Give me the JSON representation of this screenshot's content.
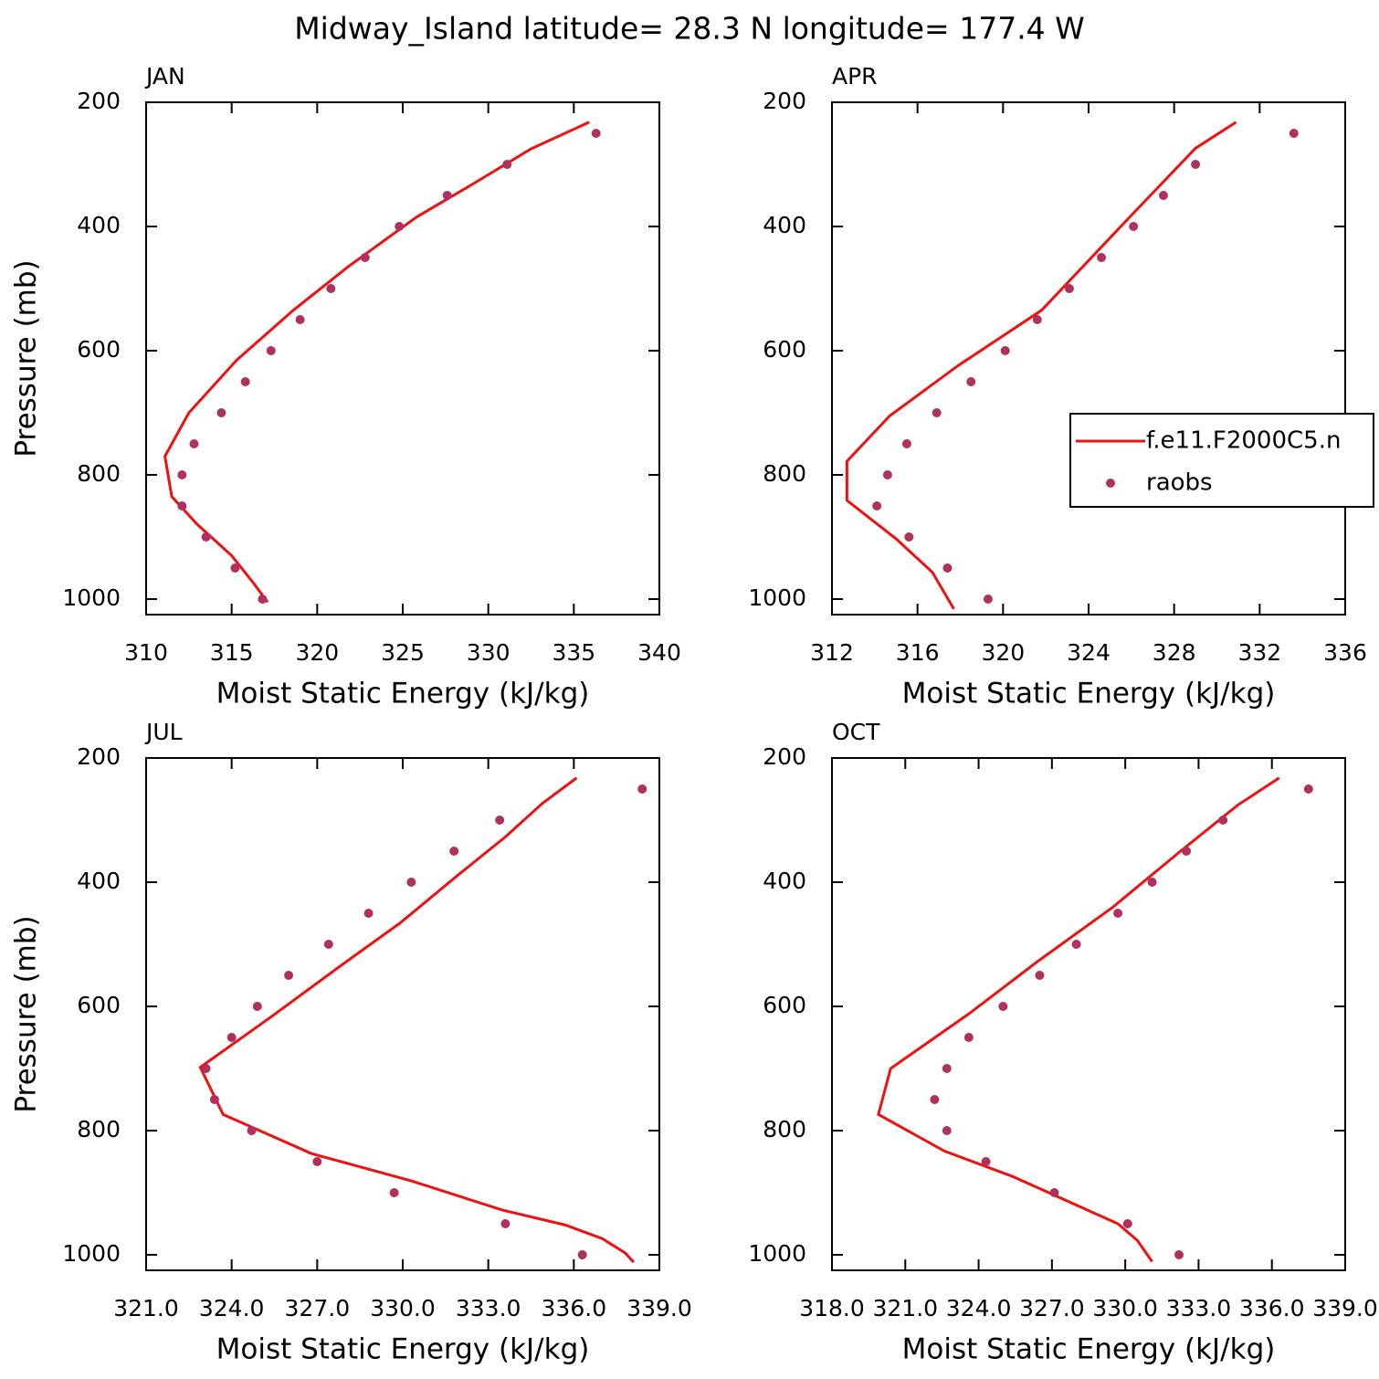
{
  "title": "Midway_Island  latitude= 28.3 N longitude= 177.4 W",
  "chart_data": [
    {
      "type": "line",
      "label": "JAN",
      "xlabel": "Moist Static Energy (kJ/kg)",
      "ylabel": "Pressure (mb)",
      "xlim": [
        310,
        340
      ],
      "xticks": [
        310,
        315,
        320,
        325,
        330,
        335,
        340
      ],
      "ylim": [
        200,
        1025
      ],
      "yticks": [
        200,
        400,
        600,
        800,
        1000
      ],
      "yinvert": true,
      "series": [
        {
          "mode": "line",
          "color": "#ee1111",
          "x": [
            335.9,
            332.5,
            329.2,
            325.8,
            321.8,
            318.6,
            315.3,
            312.5,
            311.1,
            311.5,
            313.0,
            315.0,
            316.3,
            317.1
          ],
          "y": [
            232,
            275,
            330,
            385,
            465,
            535,
            615,
            700,
            770,
            835,
            880,
            930,
            975,
            1005
          ]
        },
        {
          "mode": "markers",
          "color": "#b03060",
          "x": [
            336.3,
            331.1,
            327.6,
            324.8,
            322.8,
            320.8,
            319.0,
            317.3,
            315.8,
            314.4,
            312.8,
            312.1,
            312.1,
            313.5,
            315.2,
            316.8
          ],
          "y": [
            250,
            300,
            350,
            400,
            450,
            500,
            550,
            600,
            650,
            700,
            750,
            800,
            850,
            900,
            950,
            1000
          ]
        }
      ]
    },
    {
      "type": "line",
      "label": "APR",
      "xlabel": "Moist Static Energy (kJ/kg)",
      "xlim": [
        312,
        336
      ],
      "xticks": [
        312,
        316,
        320,
        324,
        328,
        332,
        336
      ],
      "ylim": [
        200,
        1025
      ],
      "yticks": [
        200,
        400,
        600,
        800,
        1000
      ],
      "yinvert": true,
      "legend": "right",
      "series": [
        {
          "name": "f.e11.F2000C5.n",
          "mode": "line",
          "color": "#ee1111",
          "x": [
            330.9,
            329.0,
            326.0,
            321.8,
            317.9,
            314.7,
            312.7,
            312.7,
            315.0,
            316.7,
            317.7
          ],
          "y": [
            232,
            274,
            382,
            535,
            624,
            705,
            778,
            841,
            903,
            957,
            1016
          ]
        },
        {
          "name": "raobs",
          "mode": "markers",
          "color": "#b03060",
          "x": [
            333.6,
            329.0,
            327.5,
            326.1,
            324.6,
            323.1,
            321.6,
            320.1,
            318.5,
            316.9,
            315.5,
            314.6,
            314.1,
            315.6,
            317.4,
            319.3
          ],
          "y": [
            250,
            300,
            350,
            400,
            450,
            500,
            550,
            600,
            650,
            700,
            750,
            800,
            850,
            900,
            950,
            1000
          ]
        }
      ]
    },
    {
      "type": "line",
      "label": "JUL",
      "xlabel": "Moist Static Energy (kJ/kg)",
      "ylabel": "Pressure (mb)",
      "xlim": [
        321,
        339
      ],
      "xticks": [
        {
          "value": 321,
          "label": "321.0"
        },
        {
          "value": 324,
          "label": "324.0"
        },
        {
          "value": 327,
          "label": "327.0"
        },
        {
          "value": 330,
          "label": "330.0"
        },
        {
          "value": 333,
          "label": "333.0"
        },
        {
          "value": 336,
          "label": "336.0"
        },
        {
          "value": 339,
          "label": "339.0"
        }
      ],
      "ylim": [
        200,
        1025
      ],
      "yticks": [
        200,
        400,
        600,
        800,
        1000
      ],
      "yinvert": true,
      "series": [
        {
          "mode": "line",
          "color": "#ee1111",
          "x": [
            336.1,
            334.9,
            333.6,
            331.9,
            329.9,
            327.9,
            325.5,
            322.9,
            323.7,
            326.8,
            330.3,
            333.5,
            335.7,
            337.0,
            337.8,
            338.1
          ],
          "y": [
            232,
            273,
            327,
            390,
            466,
            532,
            613,
            698,
            774,
            837,
            881,
            928,
            952,
            974,
            997,
            1012
          ]
        },
        {
          "mode": "markers",
          "color": "#b03060",
          "x": [
            338.4,
            333.4,
            331.8,
            330.3,
            328.8,
            327.4,
            326.0,
            324.9,
            324.0,
            323.1,
            323.4,
            324.7,
            327.0,
            329.7,
            333.6,
            336.3
          ],
          "y": [
            250,
            300,
            350,
            400,
            450,
            500,
            550,
            600,
            650,
            700,
            750,
            800,
            850,
            900,
            950,
            1000
          ]
        }
      ]
    },
    {
      "type": "line",
      "label": "OCT",
      "xlabel": "Moist Static Energy (kJ/kg)",
      "xlim": [
        318,
        339
      ],
      "xticks": [
        {
          "value": 318,
          "label": "318.0"
        },
        {
          "value": 321,
          "label": "321.0"
        },
        {
          "value": 324,
          "label": "324.0"
        },
        {
          "value": 327,
          "label": "327.0"
        },
        {
          "value": 330,
          "label": "330.0"
        },
        {
          "value": 333,
          "label": "333.0"
        },
        {
          "value": 336,
          "label": "336.0"
        },
        {
          "value": 339,
          "label": "339.0"
        }
      ],
      "ylim": [
        200,
        1025
      ],
      "yticks": [
        200,
        400,
        600,
        800,
        1000
      ],
      "yinvert": true,
      "series": [
        {
          "mode": "line",
          "color": "#ee1111",
          "x": [
            336.3,
            334.6,
            332.2,
            329.5,
            326.4,
            323.6,
            320.4,
            319.9,
            322.6,
            325.4,
            329.7,
            330.5,
            331.1
          ],
          "y": [
            232,
            276,
            352,
            440,
            528,
            612,
            700,
            774,
            833,
            874,
            950,
            977,
            1011
          ]
        },
        {
          "mode": "markers",
          "color": "#b03060",
          "x": [
            337.5,
            334.0,
            332.5,
            331.1,
            329.7,
            328.0,
            326.5,
            325.0,
            323.6,
            322.7,
            322.2,
            322.7,
            324.3,
            327.1,
            330.1,
            332.2
          ],
          "y": [
            250,
            300,
            350,
            400,
            450,
            500,
            550,
            600,
            650,
            700,
            750,
            800,
            850,
            900,
            950,
            1000
          ]
        }
      ]
    }
  ]
}
